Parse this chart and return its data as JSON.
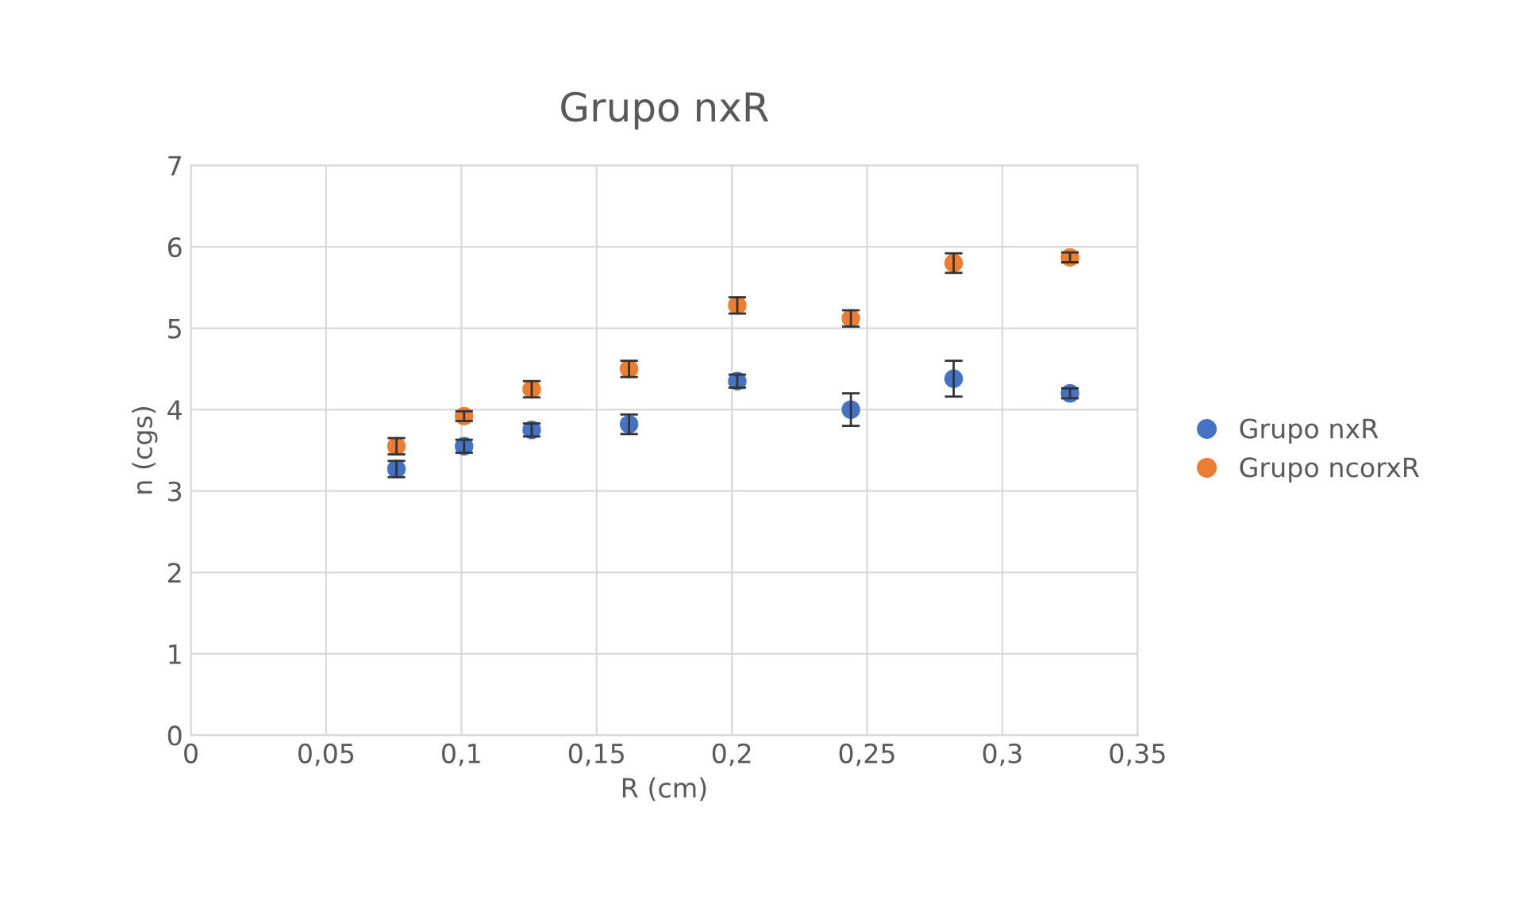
{
  "chart_data": {
    "type": "scatter",
    "title": "Grupo nxR",
    "xlabel": "R (cm)",
    "ylabel": "n (cgs)",
    "xlim": [
      0,
      0.35
    ],
    "xticks": [
      {
        "value": 0,
        "label": "0"
      },
      {
        "value": 0.05,
        "label": "0,05"
      },
      {
        "value": 0.1,
        "label": "0,1"
      },
      {
        "value": 0.15,
        "label": "0,15"
      },
      {
        "value": 0.2,
        "label": "0,2"
      },
      {
        "value": 0.25,
        "label": "0,25"
      },
      {
        "value": 0.3,
        "label": "0,3"
      },
      {
        "value": 0.35,
        "label": "0,35"
      }
    ],
    "ylim": [
      0,
      7
    ],
    "yticks": [
      0,
      1,
      2,
      3,
      4,
      5,
      6,
      7
    ],
    "grid": true,
    "legend": "right",
    "marker": "circle",
    "x": [
      0.076,
      0.101,
      0.126,
      0.162,
      0.202,
      0.244,
      0.282,
      0.325
    ],
    "series": [
      {
        "name": "Grupo nxR",
        "color": "#4472c4",
        "values": [
          3.27,
          3.55,
          3.75,
          3.82,
          4.35,
          4.0,
          4.38,
          4.2
        ],
        "errors": [
          0.1,
          0.08,
          0.08,
          0.12,
          0.08,
          0.2,
          0.22,
          0.06
        ]
      },
      {
        "name": "Grupo ncorxR",
        "color": "#ed7d31",
        "values": [
          3.55,
          3.92,
          4.25,
          4.5,
          5.28,
          5.12,
          5.8,
          5.87
        ],
        "errors": [
          0.1,
          0.06,
          0.1,
          0.1,
          0.1,
          0.1,
          0.12,
          0.06
        ]
      }
    ]
  }
}
